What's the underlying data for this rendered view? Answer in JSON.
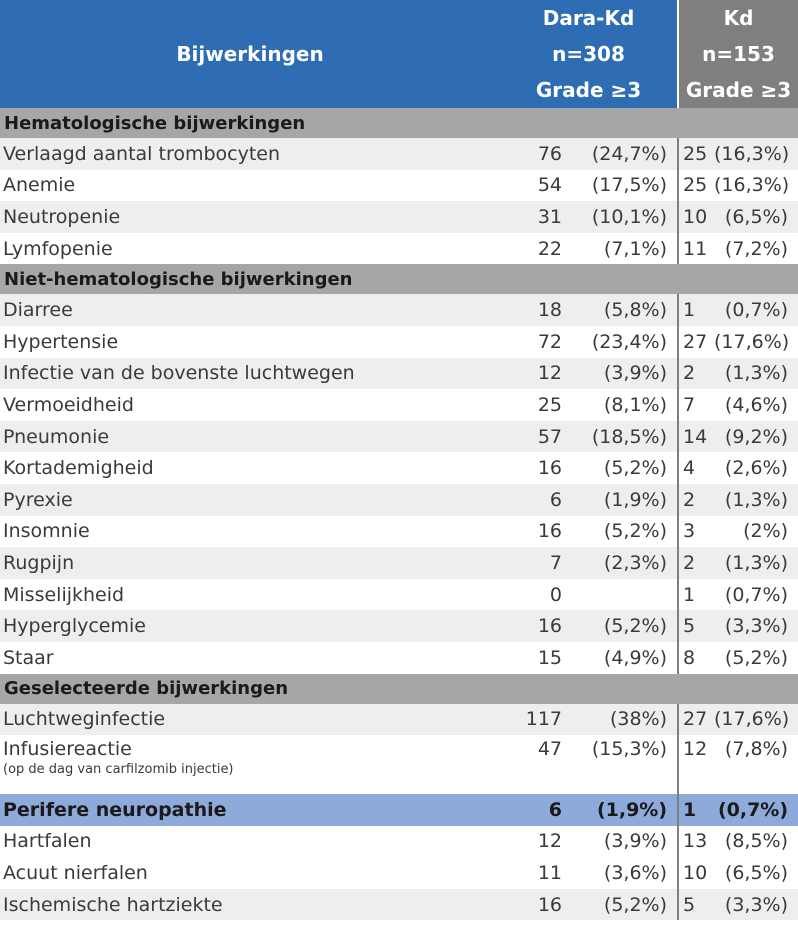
{
  "header": {
    "col_name": "Bijwerkingen",
    "dara": {
      "line1": "Dara-Kd",
      "line2": "n=308",
      "line3": "Grade ≥3"
    },
    "kd": {
      "line1": "Kd",
      "line2": "n=153",
      "line3": "Grade ≥3"
    }
  },
  "sections": {
    "hematologic": "Hematologische  bijwerkingen",
    "nonhematologic": "Niet-hematologische  bijwerkingen",
    "selected": "Geselecteerde  bijwerkingen"
  },
  "rows": [
    {
      "name": "Verlaagd aantal trombocyten",
      "dara_n": "76",
      "dara_p": "(24,7%)",
      "kd_n": "25",
      "kd_p": "(16,3%)"
    },
    {
      "name": "Anemie",
      "dara_n": "54",
      "dara_p": "(17,5%)",
      "kd_n": "25",
      "kd_p": "(16,3%)"
    },
    {
      "name": "Neutropenie",
      "dara_n": "31",
      "dara_p": "(10,1%)",
      "kd_n": "10",
      "kd_p": "(6,5%)"
    },
    {
      "name": "Lymfopenie",
      "dara_n": "22",
      "dara_p": "(7,1%)",
      "kd_n": "11",
      "kd_p": "(7,2%)"
    },
    {
      "name": "Diarree",
      "dara_n": "18",
      "dara_p": "(5,8%)",
      "kd_n": "1",
      "kd_p": "(0,7%)"
    },
    {
      "name": "Hypertensie",
      "dara_n": "72",
      "dara_p": "(23,4%)",
      "kd_n": "27",
      "kd_p": "(17,6%)"
    },
    {
      "name": "Infectie van de bovenste luchtwegen",
      "dara_n": "12",
      "dara_p": "(3,9%)",
      "kd_n": "2",
      "kd_p": "(1,3%)"
    },
    {
      "name": "Vermoeidheid",
      "dara_n": "25",
      "dara_p": "(8,1%)",
      "kd_n": "7",
      "kd_p": "(4,6%)"
    },
    {
      "name": "Pneumonie",
      "dara_n": "57",
      "dara_p": "(18,5%)",
      "kd_n": "14",
      "kd_p": "(9,2%)"
    },
    {
      "name": "Kortademigheid",
      "dara_n": "16",
      "dara_p": "(5,2%)",
      "kd_n": "4",
      "kd_p": "(2,6%)"
    },
    {
      "name": "Pyrexie",
      "dara_n": "6",
      "dara_p": "(1,9%)",
      "kd_n": "2",
      "kd_p": "(1,3%)"
    },
    {
      "name": "Insomnie",
      "dara_n": "16",
      "dara_p": "(5,2%)",
      "kd_n": "3",
      "kd_p": "(2%)"
    },
    {
      "name": "Rugpijn",
      "dara_n": "7",
      "dara_p": "(2,3%)",
      "kd_n": "2",
      "kd_p": "(1,3%)"
    },
    {
      "name": "Misselijkheid",
      "dara_n": "0",
      "dara_p": "",
      "kd_n": "1",
      "kd_p": "(0,7%)"
    },
    {
      "name": "Hyperglycemie",
      "dara_n": "16",
      "dara_p": "(5,2%)",
      "kd_n": "5",
      "kd_p": "(3,3%)"
    },
    {
      "name": "Staar",
      "dara_n": "15",
      "dara_p": "(4,9%)",
      "kd_n": "8",
      "kd_p": "(5,2%)"
    },
    {
      "name": "Luchtweginfectie",
      "dara_n": "117",
      "dara_p": "(38%)",
      "kd_n": "27",
      "kd_p": "(17,6%)"
    },
    {
      "name": "Infusiereactie",
      "note": "(op de dag van carfilzomib injectie)",
      "dara_n": "47",
      "dara_p": "(15,3%)",
      "kd_n": "12",
      "kd_p": "(7,8%)"
    },
    {
      "name": "Perifere neuropathie",
      "dara_n": "6",
      "dara_p": "(1,9%)",
      "kd_n": "1",
      "kd_p": "(0,7%)"
    },
    {
      "name": "Hartfalen",
      "dara_n": "12",
      "dara_p": "(3,9%)",
      "kd_n": "13",
      "kd_p": "(8,5%)"
    },
    {
      "name": "Acuut nierfalen",
      "dara_n": "11",
      "dara_p": "(3,6%)",
      "kd_n": "10",
      "kd_p": "(6,5%)"
    },
    {
      "name": "Ischemische hartziekte",
      "dara_n": "16",
      "dara_p": "(5,2%)",
      "kd_n": "5",
      "kd_p": "(3,3%)"
    }
  ]
}
